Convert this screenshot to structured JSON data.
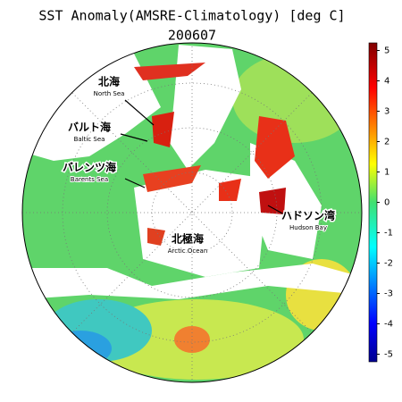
{
  "header": {
    "title": "SST Anomaly(AMSRE-Climatology) [deg C]",
    "date": "200607"
  },
  "colorbar": {
    "lim": [
      -5.25,
      5.25
    ],
    "ticks": [
      -5,
      -4,
      -3,
      -2,
      -1,
      0,
      1,
      2,
      3,
      4,
      5
    ]
  },
  "labels": [
    {
      "ja": "北海",
      "en": "North Sea"
    },
    {
      "ja": "バルト海",
      "en": "Baltic Sea"
    },
    {
      "ja": "バレンツ海",
      "en": "Barents Sea"
    },
    {
      "ja": "北極海",
      "en": "Arctic Ocean"
    },
    {
      "ja": "ハドソン湾",
      "en": "Hudson Bay"
    }
  ]
}
